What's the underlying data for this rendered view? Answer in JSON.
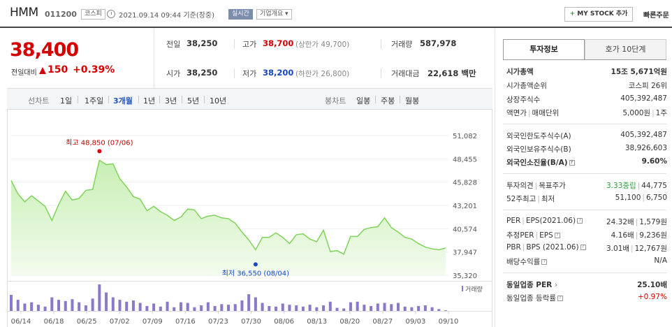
{
  "header": {
    "name": "HMM",
    "code": "011200",
    "market": "코스피",
    "timestamp": "2021.09.14 09:44  기준(장중)",
    "realtime": "실시간",
    "company_overview": "기업개요 ▾",
    "mystock_plus": "+",
    "mystock": " MY STOCK 추가",
    "quick_order": "빠른주문"
  },
  "price": {
    "current": "38,400",
    "change_label": "전일대비",
    "change": "150",
    "change_pct": "+0.39%"
  },
  "quote": {
    "prev_close_label": "전일",
    "prev_close": "38,250",
    "high_label": "고가",
    "high": "38,700",
    "upper_limit": "(상한가 49,700)",
    "volume_label": "거래량",
    "volume": "587,978",
    "open_label": "시가",
    "open": "38,250",
    "low_label": "저가",
    "low": "38,200",
    "lower_limit": "(하한가 26,800)",
    "amount_label": "거래대금",
    "amount": "22,618 백만"
  },
  "periods": {
    "line_label": "선차트",
    "items": [
      "1일",
      "1주일",
      "3개월",
      "1년",
      "3년",
      "5년",
      "10년"
    ],
    "active": "3개월",
    "candle_label": "봉차트",
    "candle_items": [
      "일봉",
      "주봉",
      "월봉"
    ]
  },
  "chart_data": {
    "type": "area",
    "y_ticks": [
      "51,082",
      "48,455",
      "45,828",
      "43,201",
      "40,574",
      "37,947",
      "35,320"
    ],
    "ylim": [
      35320,
      51082
    ],
    "x_labels": [
      "06/14",
      "06/18",
      "06/25",
      "07/02",
      "07/09",
      "07/16",
      "07/23",
      "07/30",
      "08/06",
      "08/13",
      "08/20",
      "08/27",
      "09/03",
      "09/10"
    ],
    "values": [
      46000,
      44500,
      43600,
      44300,
      43700,
      43100,
      41500,
      43300,
      44800,
      43800,
      44000,
      44900,
      45000,
      48300,
      47800,
      47900,
      46200,
      45300,
      44200,
      43900,
      42600,
      43100,
      42500,
      42100,
      41500,
      41900,
      42800,
      42700,
      41700,
      42000,
      42100,
      41800,
      41700,
      41200,
      40200,
      39300,
      38200,
      39600,
      39600,
      40100,
      39600,
      38900,
      39900,
      40000,
      39400,
      39100,
      40400,
      38000,
      38100,
      37700,
      39700,
      39700,
      40500,
      40700,
      40800,
      41800,
      40700,
      40200,
      39600,
      39400,
      38900,
      38500,
      38300,
      38200,
      38400
    ],
    "volume": [
      26,
      18,
      12,
      14,
      10,
      7,
      22,
      18,
      16,
      19,
      14,
      9,
      20,
      43,
      30,
      22,
      18,
      15,
      17,
      13,
      8,
      12,
      7,
      15,
      6,
      14,
      13,
      6,
      9,
      14,
      8,
      11,
      10,
      11,
      17,
      27,
      22,
      13,
      8,
      7,
      12,
      10,
      9,
      7,
      10,
      6,
      9,
      15,
      5,
      4,
      14,
      15,
      10,
      8,
      12,
      13,
      11,
      13,
      7,
      6,
      8,
      9,
      6,
      3,
      1
    ],
    "volume_label": "거래량",
    "max_label": "최고  48,850 (07/06)",
    "min_label": "최저  36,550 (08/04)",
    "max_value": 48850,
    "min_value": 36550,
    "max_index": 13,
    "min_index": 36,
    "colors": {
      "line": "#7fd35a",
      "fill_top": "#c8efb4",
      "fill_bottom": "#f3fbee",
      "volume": "#8b78c8",
      "max_dot": "#e00000",
      "min_dot": "#1448c4"
    }
  },
  "tabs": {
    "info": "투자정보",
    "quote10": "호가 10단계"
  },
  "info": {
    "market_cap_label": "시가총액",
    "market_cap": "15조 5,671억원",
    "market_cap_rank_label": "시가총액순위",
    "market_cap_rank": "코스피 26위",
    "listed_shares_label": "상장주식수",
    "listed_shares": "405,392,487",
    "par_label": "액면가",
    "trade_unit_label": "매매단위",
    "par": "5,000원",
    "trade_unit": "1주",
    "foreign_limit_label": "외국인한도주식수(A)",
    "foreign_limit": "405,392,487",
    "foreign_hold_label": "외국인보유주식수(B)",
    "foreign_hold": "38,926,603",
    "foreign_ratio_label": "외국인소진율(B/A)",
    "foreign_ratio": "9.60%",
    "opinion_label": "투자의견",
    "target_label": "목표주가",
    "opinion": "3.33중립",
    "target": "44,775",
    "w52_label": "52주최고",
    "w52_low_label": "최저",
    "w52_high": "51,100",
    "w52_low": "6,750",
    "per_label": "PER",
    "eps_label": "EPS(2021.06)",
    "per": "24.32배",
    "eps": "1,579원",
    "est_per_label": "추정PER",
    "est_eps_label": "EPS",
    "est_per": "4.16배",
    "est_eps": "9,236원",
    "pbr_label": "PBR",
    "bps_label": "BPS (2021.06)",
    "pbr": "3.01배",
    "bps": "12,767원",
    "div_label": "배당수익률",
    "div": "N/A",
    "ind_per_label": "동일업종 PER",
    "ind_per": "25.10배",
    "ind_rate_label": "동일업종 등락률",
    "ind_rate": "+0.97%"
  }
}
